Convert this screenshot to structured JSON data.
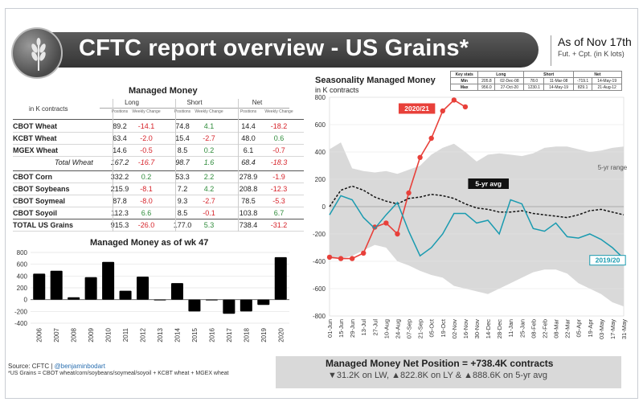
{
  "header": {
    "title": "CFTC report overview - US Grains*",
    "as_of": "As of Nov 17th",
    "units_note": "Fut. + Cpt. (in K lots)"
  },
  "table": {
    "title": "Managed Money",
    "units": "in K contracts",
    "groups": [
      "Long",
      "Short",
      "Net"
    ],
    "subheaders": [
      "Positions",
      "Weekly Change",
      "Positions",
      "Weekly Change",
      "Positions",
      "Weekly Change"
    ],
    "rows": [
      {
        "name": "CBOT Wheat",
        "values": [
          "89.2",
          "-14.1",
          "74.8",
          "4.1",
          "14.4",
          "-18.2"
        ],
        "total": false
      },
      {
        "name": "KCBT Wheat",
        "values": [
          "63.4",
          "-2.0",
          "15.4",
          "-2.7",
          "48.0",
          "0.6"
        ],
        "total": false
      },
      {
        "name": "MGEX Wheat",
        "values": [
          "14.6",
          "-0.5",
          "8.5",
          "0.2",
          "6.1",
          "-0.7"
        ],
        "total": false
      },
      {
        "name": "Total Wheat",
        "values": [
          "167.2",
          "-16.7",
          "98.7",
          "1.6",
          "68.4",
          "-18.3"
        ],
        "total": true
      },
      {
        "name": "CBOT Corn",
        "values": [
          "332.2",
          "0.2",
          "53.3",
          "2.2",
          "278.9",
          "-1.9"
        ],
        "total": false
      },
      {
        "name": "CBOT Soybeans",
        "values": [
          "215.9",
          "-8.1",
          "7.2",
          "4.2",
          "208.8",
          "-12.3"
        ],
        "total": false
      },
      {
        "name": "CBOT Soymeal",
        "values": [
          "87.8",
          "-8.0",
          "9.3",
          "-2.7",
          "78.5",
          "-5.3"
        ],
        "total": false
      },
      {
        "name": "CBOT Soyoil",
        "values": [
          "112.3",
          "6.6",
          "8.5",
          "-0.1",
          "103.8",
          "6.7"
        ],
        "total": false
      },
      {
        "name": "TOTAL US Grains",
        "values": [
          "915.3",
          "-26.0",
          "177.0",
          "5.3",
          "738.4",
          "-31.2"
        ],
        "total": false
      }
    ]
  },
  "chart_data": [
    {
      "type": "bar",
      "title": "Managed Money as of wk 47",
      "categories": [
        "2006",
        "2007",
        "2008",
        "2009",
        "2010",
        "2011",
        "2012",
        "2013",
        "2014",
        "2015",
        "2016",
        "2017",
        "2018",
        "2019",
        "2020"
      ],
      "values": [
        440,
        490,
        40,
        380,
        640,
        150,
        390,
        -10,
        280,
        -200,
        0,
        -240,
        -200,
        -90,
        720
      ],
      "ylim": [
        -400,
        800
      ],
      "yticks": [
        "800",
        "600",
        "400",
        "200",
        "0",
        "-200",
        "-400"
      ],
      "color": "#000000"
    },
    {
      "type": "line",
      "title": "Seasonality Managed Money",
      "ylabel": "in K contracts",
      "ylim": [
        -800,
        800
      ],
      "yticks": [
        "800",
        "600",
        "400",
        "200",
        "0",
        "-200",
        "-400",
        "-600",
        "-800"
      ],
      "x": [
        "01-Jun",
        "15-Jun",
        "29-Jun",
        "13-Jul",
        "27-Jul",
        "10-Aug",
        "24-Aug",
        "07-Sep",
        "21-Sep",
        "05-Oct",
        "19-Oct",
        "02-Nov",
        "16-Nov",
        "30-Nov",
        "14-Dec",
        "28-Dec",
        "11-Jan",
        "25-Jan",
        "08-Feb",
        "22-Feb",
        "08-Mar",
        "22-Mar",
        "05-Apr",
        "19-Apr",
        "03-May",
        "17-May",
        "31-May"
      ],
      "xticks": [
        "01-Jun",
        "15-Jun",
        "29-Jun",
        "13-Jul",
        "27-Jul",
        "10-Aug",
        "24-Aug",
        "07-Sep",
        "21-Sep",
        "05-Oct",
        "19-Oct",
        "02-Nov",
        "16-Nov",
        "30-Nov",
        "14-Dec",
        "28-Dec",
        "11-Jan",
        "25-Jan",
        "08-Feb",
        "22-Feb",
        "08-Mar",
        "22-Mar",
        "05-Apr",
        "19-Apr",
        "03-May",
        "17-May",
        "31-May"
      ],
      "range_band": {
        "name": "5-yr range",
        "max": [
          420,
          470,
          280,
          260,
          250,
          260,
          240,
          270,
          300,
          380,
          430,
          460,
          400,
          330,
          380,
          390,
          380,
          370,
          390,
          430,
          440,
          440,
          420,
          400,
          410,
          430,
          440
        ],
        "min": [
          -380,
          -380,
          -360,
          -320,
          -280,
          -300,
          -400,
          -430,
          -470,
          -500,
          -520,
          -580,
          -600,
          -620,
          -640,
          -600,
          -560,
          -520,
          -480,
          -460,
          -460,
          -490,
          -560,
          -600,
          -640,
          -700,
          -730
        ]
      },
      "series": [
        {
          "name": "2020/21",
          "color": "#e8403a",
          "marker": true,
          "values": [
            -370,
            -380,
            -380,
            -340,
            -150,
            -120,
            -200,
            100,
            360,
            500,
            700,
            780,
            730,
            null,
            null,
            null,
            null,
            null,
            null,
            null,
            null,
            null,
            null,
            null,
            null,
            null,
            null
          ]
        },
        {
          "name": "5-yr avg",
          "color": "#111111",
          "dashed": true,
          "values": [
            0,
            120,
            150,
            120,
            70,
            40,
            20,
            60,
            70,
            90,
            80,
            60,
            20,
            -10,
            -20,
            -40,
            -40,
            -30,
            -50,
            -60,
            -70,
            -80,
            -60,
            -30,
            -20,
            -40,
            -60
          ]
        },
        {
          "name": "2019/20",
          "color": "#1a9bb0",
          "values": [
            -60,
            80,
            50,
            -80,
            -160,
            -60,
            30,
            -180,
            -360,
            -300,
            -200,
            -50,
            -50,
            -120,
            -100,
            -200,
            50,
            20,
            -160,
            -180,
            -120,
            -220,
            -230,
            -200,
            -240,
            -300,
            -380
          ]
        }
      ]
    }
  ],
  "keymax": {
    "title": "Key stats",
    "groups": [
      "Long",
      "Short",
      "Net"
    ],
    "rows": [
      {
        "label": "Min",
        "values": [
          "205.8",
          "02-Dec-08",
          "78.0",
          "11-Mar-08",
          "-719.1",
          "14-May-19"
        ]
      },
      {
        "label": "Max",
        "values": [
          "956.0",
          "27-Oct-20",
          "1230.1",
          "14-May-19",
          "829.1",
          "21-Aug-12"
        ]
      }
    ]
  },
  "footer": {
    "source_prefix": "Source: CFTC |",
    "source_handle": "@benjaminbodart",
    "footnote": "*US Grains = CBOT wheat/corn/soybeans/soymeal/soyoil + KCBT wheat + MGEX wheat",
    "summary_title": "Managed Money Net Position = +738.4K contracts",
    "summary_sub": "▼31.2K on LW, ▲822.8K on LY & ▲888.6K on 5-yr avg"
  }
}
